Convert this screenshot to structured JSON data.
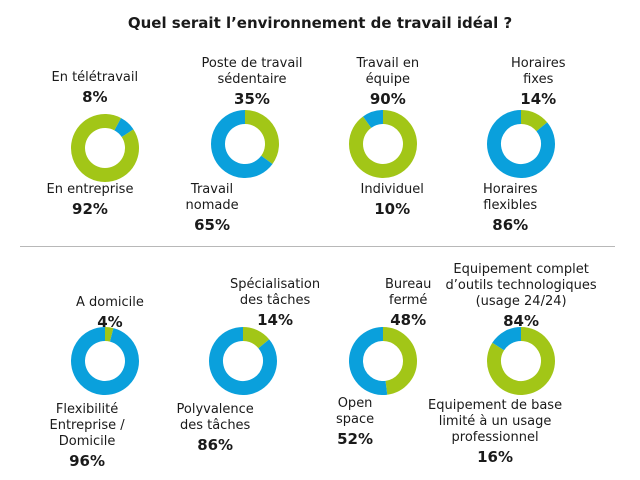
{
  "title": "Quel serait l’environnement de travail idéal ?",
  "colors": {
    "green": "#a2c617",
    "blue": "#0aa0dc"
  },
  "chart_data": {
    "type": "pie",
    "title": "Quel serait l’environnement de travail idéal ?",
    "charts": [
      {
        "top_text": [
          "En télétravail"
        ],
        "top_pct": "8%",
        "top_value": 8,
        "top_color": "blue",
        "bottom_text": [
          "En entreprise"
        ],
        "bottom_pct": "92%",
        "bottom_value": 92,
        "bottom_color": "green"
      },
      {
        "top_text": [
          "Poste de travail",
          "sédentaire"
        ],
        "top_pct": "35%",
        "top_value": 35,
        "top_color": "green",
        "bottom_text": [
          "Travail",
          "nomade"
        ],
        "bottom_pct": "65%",
        "bottom_value": 65,
        "bottom_color": "blue"
      },
      {
        "top_text": [
          "Travail en",
          "équipe"
        ],
        "top_pct": "90%",
        "top_value": 90,
        "top_color": "green",
        "bottom_text": [
          "Individuel"
        ],
        "bottom_pct": "10%",
        "bottom_value": 10,
        "bottom_color": "blue"
      },
      {
        "top_text": [
          "Horaires",
          "fixes"
        ],
        "top_pct": "14%",
        "top_value": 14,
        "top_color": "green",
        "bottom_text": [
          "Horaires",
          "flexibles"
        ],
        "bottom_pct": "86%",
        "bottom_value": 86,
        "bottom_color": "blue"
      },
      {
        "top_text": [
          "A domicile"
        ],
        "top_pct": "4%",
        "top_value": 4,
        "top_color": "green",
        "bottom_text": [
          "Flexibilité",
          "Entreprise /",
          "Domicile"
        ],
        "bottom_pct": "96%",
        "bottom_value": 96,
        "bottom_color": "blue"
      },
      {
        "top_text": [
          "Spécialisation",
          "des tâches"
        ],
        "top_pct": "14%",
        "top_value": 14,
        "top_color": "green",
        "bottom_text": [
          "Polyvalence",
          "des tâches"
        ],
        "bottom_pct": "86%",
        "bottom_value": 86,
        "bottom_color": "blue"
      },
      {
        "top_text": [
          "Bureau",
          "fermé"
        ],
        "top_pct": "48%",
        "top_value": 48,
        "top_color": "green",
        "bottom_text": [
          "Open",
          "space"
        ],
        "bottom_pct": "52%",
        "bottom_value": 52,
        "bottom_color": "blue"
      },
      {
        "top_text": [
          "Equipement complet",
          "d’outils technologiques",
          "(usage 24/24)"
        ],
        "top_pct": "84%",
        "top_value": 84,
        "top_color": "green",
        "bottom_text": [
          "Equipement de base",
          "limité à un usage",
          "professionnel"
        ],
        "bottom_pct": "16%",
        "bottom_value": 16,
        "bottom_color": "blue"
      }
    ]
  }
}
